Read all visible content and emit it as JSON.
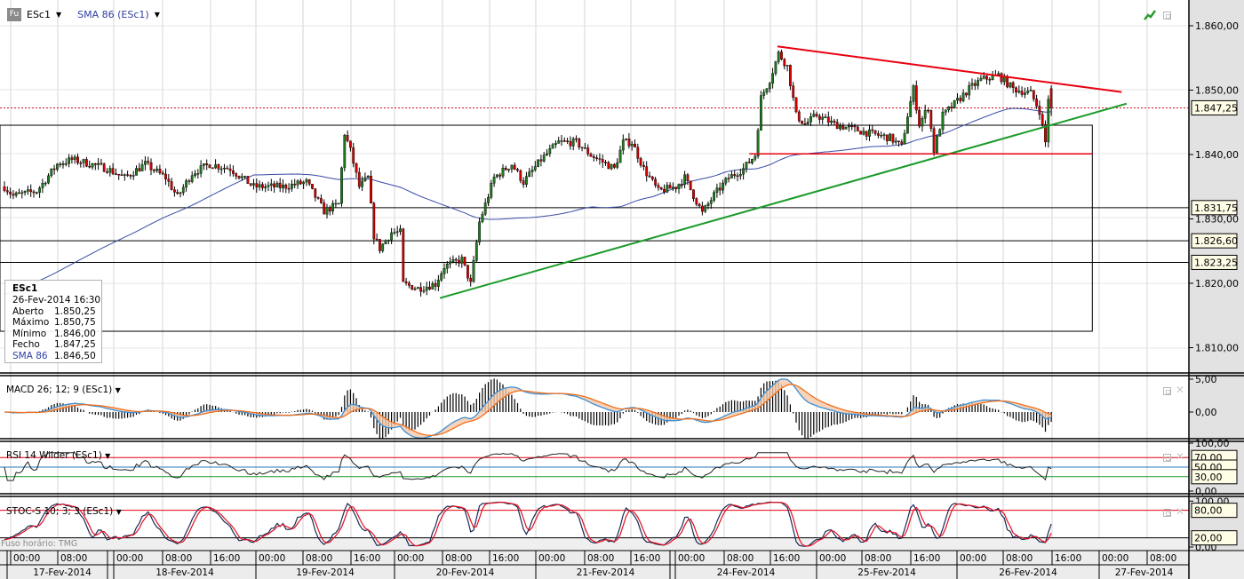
{
  "header": {
    "badge": "Fu",
    "symbol": "ESc1",
    "study": "SMA 86 (ESc1)",
    "caret": "▼"
  },
  "info_box": {
    "symbol": "ESc1",
    "datetime": "26-Fev-2014 16:30",
    "rows": [
      {
        "label": "Aberto",
        "value": "1.850,25"
      },
      {
        "label": "Máximo",
        "value": "1.850,75"
      },
      {
        "label": "Mínimo",
        "value": "1.846,00"
      },
      {
        "label": "Fecho",
        "value": "1.847,25"
      },
      {
        "label": "SMA 86",
        "value": "1.846,50"
      }
    ]
  },
  "panes": {
    "macd_label": "MACD 26; 12; 9 (ESc1)",
    "rsi_label": "RSI 14 Wilder (ESc1)",
    "stoc_label": "STOC-S 10; 3; 3 (ESc1)"
  },
  "timezone_label": "Fuso horário: TMG",
  "colors": {
    "up": "#1f7a1f",
    "down": "#d40000",
    "sma": "#3a4aa6",
    "macd": "#3b8fd6",
    "signal": "#f07020",
    "rsi": "#222222",
    "stoc_k": "#1a2a55",
    "stoc_d": "#e01020",
    "trend_red": "#e8000f",
    "trend_green": "#1a9a2a"
  },
  "axes": {
    "price_ticks": [
      {
        "v": 1860,
        "label": "1.860,00"
      },
      {
        "v": 1850,
        "label": "1.850,00"
      },
      {
        "v": 1840,
        "label": "1.840,00"
      },
      {
        "v": 1830,
        "label": "1.830,00"
      },
      {
        "v": 1820,
        "label": "1.820,00"
      },
      {
        "v": 1810,
        "label": "1.810,00"
      }
    ],
    "price_markers": [
      {
        "v": 1847.25,
        "label": "1.847,25"
      },
      {
        "v": 1831.75,
        "label": "1.831,75"
      },
      {
        "v": 1826.6,
        "label": "1.826,60"
      },
      {
        "v": 1823.25,
        "label": "1.823,25"
      }
    ],
    "macd_ticks": [
      {
        "v": 5,
        "label": "5,00"
      },
      {
        "v": 0,
        "label": "0,00"
      }
    ],
    "rsi_ticks": [
      {
        "v": 100,
        "label": "100,00"
      },
      {
        "v": 0,
        "label": "0,00"
      }
    ],
    "rsi_markers": [
      {
        "v": 70,
        "label": "70,00"
      },
      {
        "v": 50,
        "label": "50,00"
      },
      {
        "v": 30,
        "label": "30,00"
      }
    ],
    "stoc_ticks": [
      {
        "v": 100,
        "label": "100,00"
      },
      {
        "v": 0,
        "label": "0,00"
      }
    ],
    "stoc_markers": [
      {
        "v": 80,
        "label": "80,00"
      },
      {
        "v": 20,
        "label": "20,00"
      }
    ],
    "times": [
      "00:00",
      "08:00",
      "00:00",
      "08:00",
      "16:00",
      "00:00",
      "08:00",
      "16:00",
      "00:00",
      "08:00",
      "16:00",
      "00:00",
      "08:00",
      "16:00",
      "00:00",
      "08:00",
      "16:00",
      "00:00",
      "08:00",
      "16:00",
      "00:00",
      "08:00",
      "16:00",
      "00:00",
      "08:00"
    ],
    "dates": [
      "17-Fev-2014",
      "18-Fev-2014",
      "19-Fev-2014",
      "20-Fev-2014",
      "21-Fev-2014",
      "24-Fev-2014",
      "25-Fev-2014",
      "26-Fev-2014",
      "27-Fev-2014"
    ]
  },
  "chart_data": {
    "type": "candlestick",
    "symbol": "ESc1",
    "bar_interval": "30 min",
    "close_waypoints": [
      [
        0,
        1835.0
      ],
      [
        3,
        1833.6
      ],
      [
        11,
        1834.3
      ],
      [
        18,
        1838.5
      ],
      [
        23,
        1839.2
      ],
      [
        27,
        1838.8
      ],
      [
        35,
        1837.8
      ],
      [
        41,
        1836.4
      ],
      [
        48,
        1838.5
      ],
      [
        55,
        1836.4
      ],
      [
        59,
        1833.4
      ],
      [
        64,
        1837.1
      ],
      [
        70,
        1838.5
      ],
      [
        77,
        1837.8
      ],
      [
        85,
        1835.0
      ],
      [
        95,
        1835.0
      ],
      [
        103,
        1835.7
      ],
      [
        109,
        1831.2
      ],
      [
        114,
        1832.3
      ],
      [
        116,
        1843.3
      ],
      [
        118,
        1840.6
      ],
      [
        121,
        1835.0
      ],
      [
        124,
        1836.4
      ],
      [
        126,
        1827.4
      ],
      [
        128,
        1825.4
      ],
      [
        132,
        1827.9
      ],
      [
        135,
        1827.9
      ],
      [
        136,
        1819.9
      ],
      [
        141,
        1819.2
      ],
      [
        147,
        1819.9
      ],
      [
        150,
        1822.6
      ],
      [
        156,
        1823.7
      ],
      [
        159,
        1819.9
      ],
      [
        162,
        1829.5
      ],
      [
        167,
        1836.4
      ],
      [
        173,
        1838.5
      ],
      [
        177,
        1835.7
      ],
      [
        183,
        1839.2
      ],
      [
        189,
        1841.9
      ],
      [
        195,
        1841.9
      ],
      [
        200,
        1839.9
      ],
      [
        208,
        1837.8
      ],
      [
        211,
        1841.9
      ],
      [
        214,
        1841.9
      ],
      [
        218,
        1837.8
      ],
      [
        223,
        1834.3
      ],
      [
        229,
        1835.0
      ],
      [
        232,
        1836.4
      ],
      [
        238,
        1830.9
      ],
      [
        242,
        1833.7
      ],
      [
        247,
        1836.4
      ],
      [
        252,
        1837.8
      ],
      [
        256,
        1839.9
      ],
      [
        258,
        1848.8
      ],
      [
        261,
        1851.6
      ],
      [
        264,
        1855.7
      ],
      [
        267,
        1853.7
      ],
      [
        270,
        1846.1
      ],
      [
        273,
        1844.7
      ],
      [
        277,
        1846.1
      ],
      [
        283,
        1844.7
      ],
      [
        289,
        1844.0
      ],
      [
        295,
        1843.3
      ],
      [
        302,
        1842.6
      ],
      [
        306,
        1841.2
      ],
      [
        308,
        1846.1
      ],
      [
        310,
        1850.2
      ],
      [
        312,
        1844.7
      ],
      [
        315,
        1847.4
      ],
      [
        317,
        1840.6
      ],
      [
        320,
        1846.1
      ],
      [
        323,
        1847.4
      ],
      [
        329,
        1850.2
      ],
      [
        333,
        1851.6
      ],
      [
        339,
        1852.3
      ],
      [
        344,
        1850.2
      ],
      [
        350,
        1849.5
      ],
      [
        353,
        1846.8
      ],
      [
        355,
        1841.9
      ],
      [
        356,
        1848.8
      ],
      [
        357,
        1847.25
      ]
    ],
    "last_bar": {
      "open": 1850.25,
      "high": 1850.75,
      "low": 1846.0,
      "close": 1847.25,
      "sma86": 1846.5
    },
    "sma_period": 86,
    "sma_seed": 1818,
    "horizontal_lines": [
      1831.75,
      1826.6,
      1823.25
    ],
    "rectangle": {
      "bar_from": 0,
      "bar_to": 371,
      "price_top": 1844.55,
      "price_bottom": 1812.55
    },
    "support_line_red": {
      "bar_from": 254,
      "bar_to": 371,
      "price": 1840.1
    },
    "trend_red": {
      "bar_from": 263.6,
      "price_from": 1856.8,
      "bar_to": 381,
      "price_to": 1849.7
    },
    "trend_green": {
      "bar_from": 148.5,
      "price_from": 1817.7,
      "bar_to": 382.7,
      "price_to": 1847.9
    },
    "macd": {
      "fast": 12,
      "slow": 26,
      "signal": 9,
      "ylim": [
        -5,
        5
      ]
    },
    "rsi": {
      "period": 14,
      "levels": [
        70,
        50,
        30
      ],
      "ylim": [
        0,
        100
      ]
    },
    "stoch": {
      "period": 10,
      "k_smooth": 3,
      "d_smooth": 3,
      "levels": [
        80,
        20
      ],
      "ylim": [
        0,
        100
      ]
    }
  }
}
